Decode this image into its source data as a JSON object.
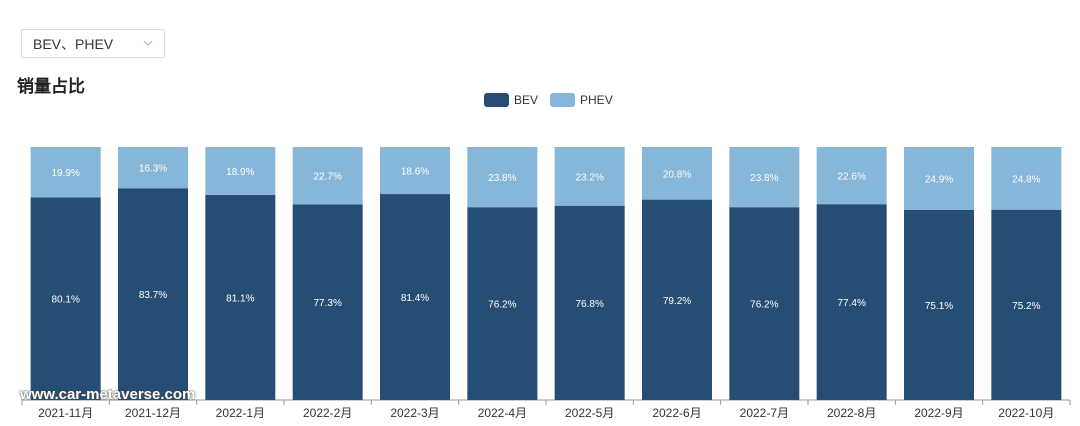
{
  "filter": {
    "selected": "BEV、PHEV"
  },
  "page": {
    "title": "销量占比"
  },
  "watermark": "www.car-metaverse.com",
  "chart_data": {
    "type": "bar",
    "stacked": true,
    "categories": [
      "2021-11月",
      "2021-12月",
      "2022-1月",
      "2022-2月",
      "2022-3月",
      "2022-4月",
      "2022-5月",
      "2022-6月",
      "2022-7月",
      "2022-8月",
      "2022-9月",
      "2022-10月"
    ],
    "series": [
      {
        "name": "BEV",
        "color": "#264d73",
        "values": [
          80.1,
          83.7,
          81.1,
          77.3,
          81.4,
          76.2,
          76.8,
          79.2,
          76.2,
          77.4,
          75.1,
          75.2
        ],
        "labels": [
          "80.1%",
          "83.7%",
          "81.1%",
          "77.3%",
          "81.4%",
          "76.2%",
          "76.8%",
          "79.2%",
          "76.2%",
          "77.4%",
          "75.1%",
          "75.2%"
        ]
      },
      {
        "name": "PHEV",
        "color": "#86b6d8",
        "values": [
          19.9,
          16.3,
          18.9,
          22.7,
          18.6,
          23.8,
          23.2,
          20.8,
          23.8,
          22.6,
          24.9,
          24.8
        ],
        "labels": [
          "19.9%",
          "16.3%",
          "18.9%",
          "22.7%",
          "18.6%",
          "23.8%",
          "23.2%",
          "20.8%",
          "23.8%",
          "22.6%",
          "24.9%",
          "24.8%"
        ]
      }
    ],
    "ylim": [
      0,
      100
    ],
    "legend": "top-center",
    "grid": false
  }
}
